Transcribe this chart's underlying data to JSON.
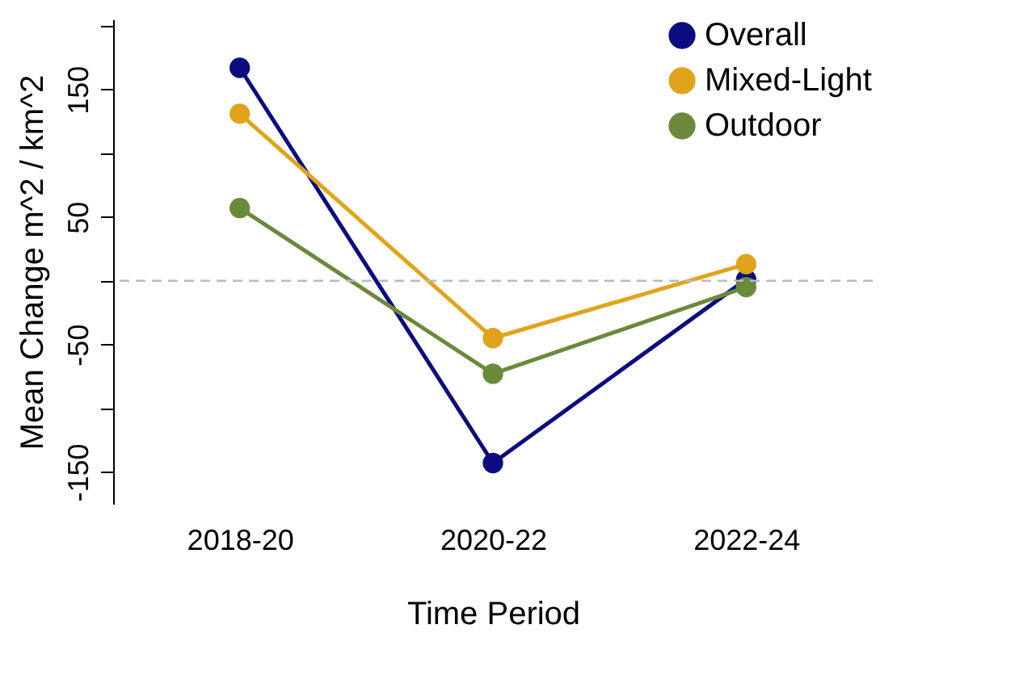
{
  "chart_data": {
    "type": "line",
    "xlabel": "Time Period",
    "ylabel": "Mean Change m^2 / km^2",
    "categories": [
      "2018-20",
      "2020-22",
      "2022-24"
    ],
    "series": [
      {
        "name": "Overall",
        "color": "#0c0c80",
        "values": [
          167,
          -143,
          1
        ]
      },
      {
        "name": "Mixed-Light",
        "color": "#e0a41c",
        "values": [
          131,
          -45,
          13
        ]
      },
      {
        "name": "Outdoor",
        "color": "#6a8a3a",
        "values": [
          57,
          -73,
          -5
        ]
      }
    ],
    "ylim": [
      -175,
      205
    ],
    "yticks": [
      -150,
      {
        "value": -100,
        "label": null
      },
      -50,
      {
        "value": 0,
        "label": null
      },
      50,
      {
        "value": 100,
        "label": null
      },
      150,
      {
        "value": 200,
        "label": null
      }
    ],
    "ref_lines": [
      {
        "axis": "y",
        "value": 0,
        "color": "#bbbbbb",
        "line_style": "dashed"
      }
    ],
    "marker": "circle",
    "legend": "top right",
    "grid": false
  }
}
